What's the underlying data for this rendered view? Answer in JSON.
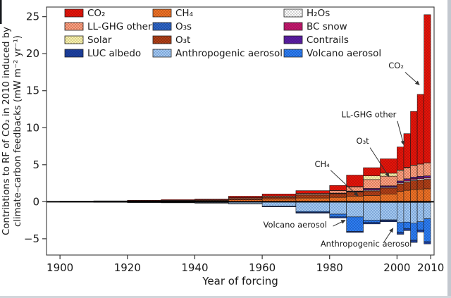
{
  "figure": {
    "ylabel_line1": "Contribtions to RF of CO₂ in 2010 induced by",
    "ylabel_line2": "climate–carbon feedbacks (mW m⁻² yr⁻¹)",
    "xlabel": "Year of forcing"
  },
  "chart_data": {
    "type": "bar",
    "stacked": true,
    "title": "",
    "xlabel": "Year of forcing",
    "ylabel": "Contribtions to RF of CO₂ in 2010 induced by climate–carbon feedbacks (mW m⁻² yr⁻¹)",
    "unit": "mW m⁻² yr⁻¹",
    "xlim": [
      1896,
      2011
    ],
    "ylim": [
      -7.2,
      26.3
    ],
    "x_ticks": [
      1900,
      1920,
      1940,
      1960,
      1980,
      2000,
      2010
    ],
    "y_ticks": [
      25,
      20,
      15,
      10,
      5,
      0,
      -5
    ],
    "grid": false,
    "legend_position": "top-inside",
    "bins": [
      {
        "start": 1900,
        "end": 1910
      },
      {
        "start": 1910,
        "end": 1920
      },
      {
        "start": 1920,
        "end": 1930
      },
      {
        "start": 1930,
        "end": 1940
      },
      {
        "start": 1940,
        "end": 1950
      },
      {
        "start": 1950,
        "end": 1960
      },
      {
        "start": 1960,
        "end": 1970
      },
      {
        "start": 1970,
        "end": 1980
      },
      {
        "start": 1980,
        "end": 1985
      },
      {
        "start": 1985,
        "end": 1990
      },
      {
        "start": 1990,
        "end": 1995
      },
      {
        "start": 1995,
        "end": 2000
      },
      {
        "start": 2000,
        "end": 2002
      },
      {
        "start": 2002,
        "end": 2004
      },
      {
        "start": 2004,
        "end": 2006
      },
      {
        "start": 2006,
        "end": 2008
      },
      {
        "start": 2008,
        "end": 2010
      }
    ],
    "stack_order_positive": [
      "ch4",
      "o3t",
      "h2os",
      "bc_snow",
      "contrails",
      "llghg_other",
      "solar",
      "co2"
    ],
    "stack_order_negative": [
      "o3s",
      "anthropogenic_aerosol",
      "volcano_aerosol",
      "luc_albedo"
    ],
    "series": [
      {
        "key": "co2",
        "name": "CO₂",
        "color": "#e3150b",
        "dot_color": "#9e0a04",
        "values": [
          0.04,
          0.05,
          0.07,
          0.09,
          0.1,
          0.2,
          0.27,
          0.37,
          0.68,
          1.54,
          1.1,
          1.95,
          3.1,
          4.55,
          7.25,
          9.4,
          20.0
        ]
      },
      {
        "key": "llghg_other",
        "name": "LL-GHG other",
        "color": "#f5a486",
        "dot_color": "#c04022",
        "values": [
          0.01,
          0.02,
          0.03,
          0.04,
          0.05,
          0.1,
          0.14,
          0.18,
          0.33,
          0.55,
          1.2,
          1.3,
          1.4,
          1.5,
          1.6,
          1.65,
          1.75
        ]
      },
      {
        "key": "solar",
        "name": "Solar",
        "color": "#f6f0b2",
        "dot_color": "#b1a44e",
        "values": [
          0,
          0,
          0,
          0,
          0.01,
          0.02,
          0.02,
          0.01,
          0.02,
          0.06,
          0.5,
          0.4,
          0.1,
          0.05,
          0.03,
          0.02,
          0.02
        ]
      },
      {
        "key": "luc_albedo",
        "name": "LUC albedo",
        "color": "#1c3f9e",
        "dot_color": "#16307a",
        "values": [
          -0.015,
          -0.02,
          -0.03,
          -0.04,
          -0.05,
          -0.05,
          -0.08,
          -0.12,
          -0.15,
          -0.15,
          -0.2,
          -0.2,
          -0.25,
          -0.25,
          -0.3,
          -0.3,
          -0.3
        ]
      },
      {
        "key": "ch4",
        "name": "CH₄",
        "color": "#ee7227",
        "dot_color": "#98400e",
        "values": [
          0.02,
          0.03,
          0.06,
          0.09,
          0.12,
          0.25,
          0.35,
          0.5,
          0.6,
          0.75,
          0.85,
          1.05,
          1.4,
          1.55,
          1.65,
          1.7,
          1.75
        ]
      },
      {
        "key": "o3s",
        "name": "O₃s",
        "color": "#2f66c8",
        "dot_color": "#133472",
        "values": [
          -0.005,
          -0.01,
          -0.01,
          -0.01,
          -0.02,
          -0.03,
          -0.05,
          -0.07,
          -0.08,
          -0.1,
          -0.1,
          -0.1,
          -0.1,
          -0.1,
          -0.1,
          -0.1,
          -0.1
        ]
      },
      {
        "key": "o3t",
        "name": "O₃t",
        "color": "#b14018",
        "dot_color": "#611f08",
        "values": [
          0.01,
          0.02,
          0.04,
          0.06,
          0.08,
          0.18,
          0.26,
          0.4,
          0.48,
          0.55,
          0.6,
          0.8,
          1.0,
          1.1,
          1.2,
          1.25,
          1.28
        ]
      },
      {
        "key": "anthropogenic_aerosol",
        "name": "Anthropogenic aerosol",
        "color": "#a4c8ef",
        "dot_color": "#4878b8",
        "values": [
          -0.03,
          -0.05,
          -0.08,
          -0.1,
          -0.13,
          -0.22,
          -0.55,
          -1.25,
          -1.6,
          -1.95,
          -2.4,
          -2.35,
          -2.7,
          -2.65,
          -2.8,
          -2.6,
          -2.2
        ]
      },
      {
        "key": "h2os",
        "name": "H₂Os",
        "color": "#ffffff",
        "dot_color": "#8a8a8a",
        "values": [
          0,
          0,
          0,
          0,
          0,
          0,
          0.01,
          0.02,
          0.03,
          0.05,
          0.1,
          0.1,
          0.12,
          0.13,
          0.14,
          0.15,
          0.15
        ]
      },
      {
        "key": "bc_snow",
        "name": "BC snow",
        "color": "#c0186c",
        "dot_color": "#8f0f4d",
        "values": [
          0,
          0,
          0,
          0,
          0,
          0,
          0,
          0.01,
          0.03,
          0.05,
          0.1,
          0.1,
          0.12,
          0.14,
          0.15,
          0.15,
          0.15
        ]
      },
      {
        "key": "contrails",
        "name": "Contrails",
        "color": "#5a1ea2",
        "dot_color": "#43157c",
        "values": [
          0,
          0,
          0,
          0,
          0,
          0,
          0,
          0.01,
          0.03,
          0.05,
          0.15,
          0.1,
          0.16,
          0.18,
          0.18,
          0.18,
          0.17
        ]
      },
      {
        "key": "volcano_aerosol",
        "name": "Volcano aerosol",
        "color": "#2e7ef2",
        "dot_color": "#11459e",
        "values": [
          0,
          0,
          0,
          0,
          0,
          0,
          -0.02,
          -0.11,
          -0.37,
          -1.95,
          -0.3,
          -0.05,
          -1.35,
          -0.9,
          -2.3,
          -1.1,
          -3.1
        ]
      }
    ],
    "annotations": [
      {
        "text": "CO₂",
        "anchor": "end",
        "text_x": 2002.0,
        "text_y": 18.0,
        "line": [
          2002.4,
          17.5,
          2006.6,
          15.8
        ]
      },
      {
        "text": "LL-GHG other",
        "anchor": "end",
        "text_x": 1999.8,
        "text_y": 11.4,
        "line": [
          2000.1,
          10.9,
          2002.0,
          7.7
        ]
      },
      {
        "text": "O₃t",
        "anchor": "end",
        "text_x": 1991.7,
        "text_y": 7.85,
        "line": [
          1992.0,
          7.3,
          1997.6,
          3.4
        ]
      },
      {
        "text": "CH₄",
        "anchor": "end",
        "text_x": 1980.0,
        "text_y": 4.7,
        "line": [
          1980.3,
          4.25,
          1988.4,
          0.8
        ]
      },
      {
        "text": "Volcano aerosol",
        "anchor": "start",
        "text_x": 1960.3,
        "text_y": -3.5,
        "line": [
          1981.0,
          -3.3,
          1984.6,
          -2.5
        ]
      },
      {
        "text": "Anthropogenic aerosol",
        "anchor": "start",
        "text_x": 1977.3,
        "text_y": -6.05,
        "line": [
          1996.0,
          -5.55,
          1998.8,
          -3.6
        ]
      }
    ]
  },
  "legend": {
    "columns": [
      [
        "co2",
        "llghg_other",
        "solar",
        "luc_albedo"
      ],
      [
        "ch4",
        "o3s",
        "o3t",
        "anthropogenic_aerosol"
      ],
      [
        "h2os",
        "bc_snow",
        "contrails",
        "volcano_aerosol"
      ]
    ]
  }
}
